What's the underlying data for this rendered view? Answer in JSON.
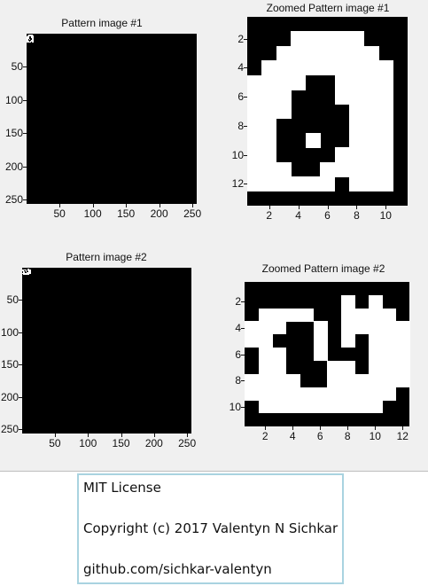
{
  "figure": {
    "panels": [
      {
        "id": "p1",
        "title": "Pattern image #1",
        "y_ticks": [
          "50",
          "100",
          "150",
          "200",
          "250"
        ],
        "x_ticks": [
          "50",
          "100",
          "150",
          "200",
          "250"
        ],
        "x_range": [
          0.5,
          256.5
        ],
        "y_range": [
          0.5,
          256.5
        ]
      },
      {
        "id": "z1",
        "title": "Zoomed Pattern image #1",
        "y_ticks": [
          "2",
          "4",
          "6",
          "8",
          "10",
          "12"
        ],
        "x_ticks": [
          "2",
          "4",
          "6",
          "8",
          "10"
        ],
        "x_range": [
          0.5,
          11.5
        ],
        "y_range": [
          0.5,
          13.5
        ]
      },
      {
        "id": "p2",
        "title": "Pattern image #2",
        "y_ticks": [
          "50",
          "100",
          "150",
          "200",
          "250"
        ],
        "x_ticks": [
          "50",
          "100",
          "150",
          "200",
          "250"
        ],
        "x_range": [
          0.5,
          256.5
        ],
        "y_range": [
          0.5,
          256.5
        ]
      },
      {
        "id": "z2",
        "title": "Zoomed Pattern image #2",
        "y_ticks": [
          "2",
          "4",
          "6",
          "8",
          "10"
        ],
        "x_ticks": [
          "2",
          "4",
          "6",
          "8",
          "10",
          "12"
        ],
        "x_range": [
          0.5,
          12.5
        ],
        "y_range": [
          0.5,
          11.5
        ]
      }
    ],
    "zoomed_pattern_1": [
      "00000000000",
      "00011111000",
      "00111111100",
      "01111111110",
      "11110011110",
      "11100011110",
      "11100001110",
      "11000001110",
      "11001001110",
      "11000011110",
      "11100111110",
      "11111101110",
      "00000000000"
    ],
    "zoomed_pattern_2": [
      "000000000000",
      "000000010100",
      "011110011110",
      "111001011111",
      "110001010111",
      "011001000111",
      "011000110111",
      "111100111111",
      "111111111110",
      "011111111100",
      "000000000000"
    ]
  },
  "license": {
    "line1": "MIT License",
    "line2": "Copyright (c) 2017 Valentyn N Sichkar",
    "line3": "github.com/sichkar-valentyn"
  }
}
